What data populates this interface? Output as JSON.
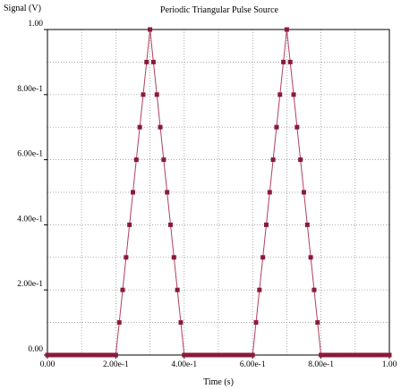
{
  "chart_data": {
    "type": "line",
    "title": "Periodic Triangular Pulse Source",
    "xlabel": "Time (s)",
    "ylabel": "Signal (V)",
    "xlim": [
      0,
      1
    ],
    "ylim": [
      0,
      1
    ],
    "x_ticks": [
      "0.00",
      "2.00e-1",
      "4.00e-1",
      "6.00e-1",
      "8.00e-1",
      "1.00"
    ],
    "y_ticks": [
      "0.00",
      "2.00e-1",
      "4.00e-1",
      "6.00e-1",
      "8.00e-1",
      "1.00"
    ],
    "grid": true,
    "line_color": "#b0405c",
    "marker_color": "#8b1a3a",
    "series": [
      {
        "x": [
          0.0,
          0.01,
          0.02,
          0.03,
          0.04,
          0.05,
          0.06,
          0.07,
          0.08,
          0.09,
          0.1,
          0.11,
          0.12,
          0.13,
          0.14,
          0.15,
          0.16,
          0.17,
          0.18,
          0.19,
          0.2,
          0.21,
          0.22,
          0.23,
          0.24,
          0.25,
          0.26,
          0.27,
          0.28,
          0.29,
          0.3,
          0.31,
          0.32,
          0.33,
          0.34,
          0.35,
          0.36,
          0.37,
          0.38,
          0.39,
          0.4,
          0.41,
          0.42,
          0.43,
          0.44,
          0.45,
          0.46,
          0.47,
          0.48,
          0.49,
          0.5,
          0.51,
          0.52,
          0.53,
          0.54,
          0.55,
          0.56,
          0.57,
          0.58,
          0.59,
          0.6,
          0.61,
          0.62,
          0.63,
          0.64,
          0.65,
          0.66,
          0.67,
          0.68,
          0.69,
          0.7,
          0.71,
          0.72,
          0.73,
          0.74,
          0.75,
          0.76,
          0.77,
          0.78,
          0.79,
          0.8,
          0.81,
          0.82,
          0.83,
          0.84,
          0.85,
          0.86,
          0.87,
          0.88,
          0.89,
          0.9,
          0.91,
          0.92,
          0.93,
          0.94,
          0.95,
          0.96,
          0.97,
          0.98,
          0.99,
          1.0
        ],
        "y": [
          0,
          0,
          0,
          0,
          0,
          0,
          0,
          0,
          0,
          0,
          0,
          0,
          0,
          0,
          0,
          0,
          0,
          0,
          0,
          0,
          0,
          0.1,
          0.2,
          0.3,
          0.4,
          0.5,
          0.6,
          0.7,
          0.8,
          0.9,
          1.0,
          0.9,
          0.8,
          0.7,
          0.6,
          0.5,
          0.4,
          0.3,
          0.2,
          0.1,
          0,
          0,
          0,
          0,
          0,
          0,
          0,
          0,
          0,
          0,
          0,
          0,
          0,
          0,
          0,
          0,
          0,
          0,
          0,
          0,
          0,
          0.1,
          0.2,
          0.3,
          0.4,
          0.5,
          0.6,
          0.7,
          0.8,
          0.9,
          1.0,
          0.9,
          0.8,
          0.7,
          0.6,
          0.5,
          0.4,
          0.3,
          0.2,
          0.1,
          0,
          0,
          0,
          0,
          0,
          0,
          0,
          0,
          0,
          0,
          0,
          0,
          0,
          0,
          0,
          0,
          0,
          0,
          0,
          0,
          0
        ]
      }
    ]
  }
}
